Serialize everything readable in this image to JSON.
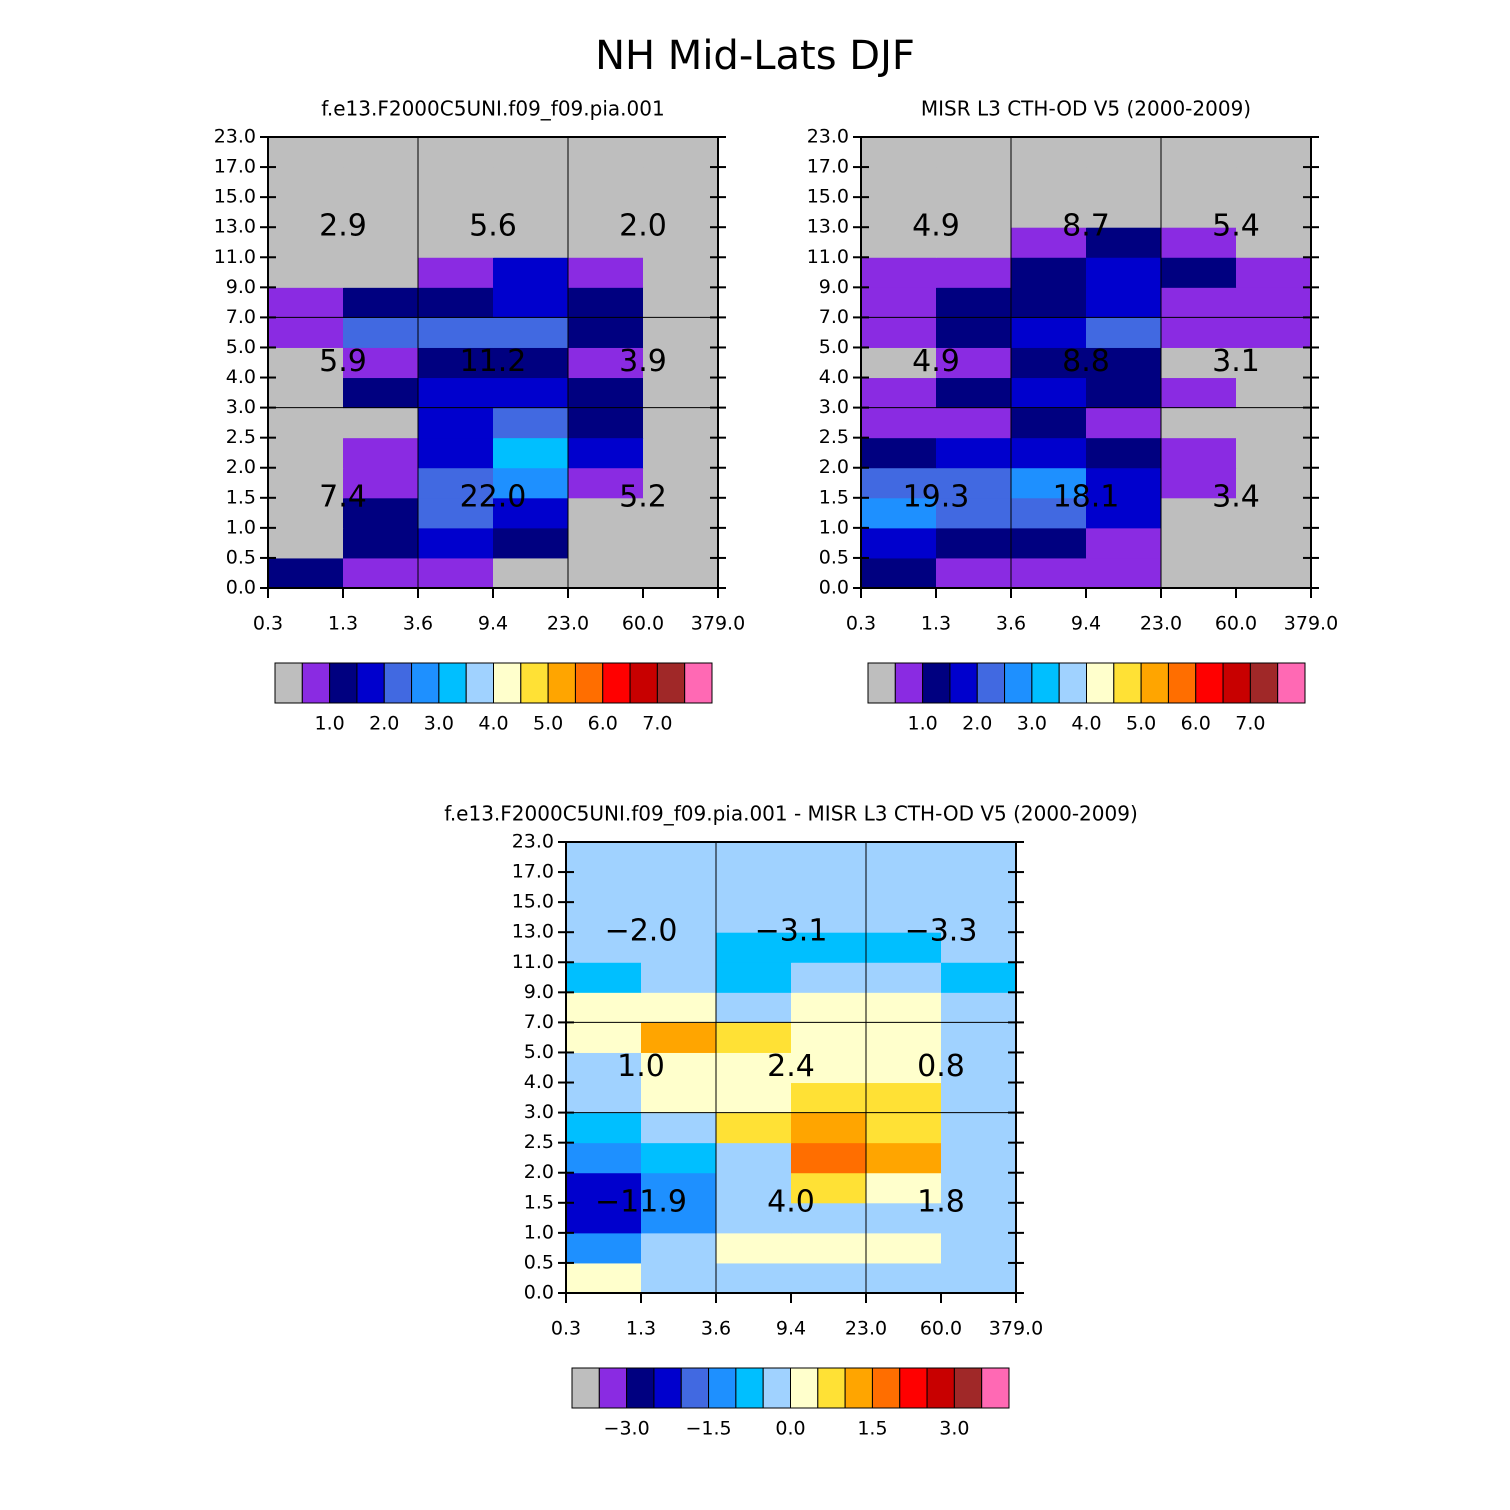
{
  "title": "NH Mid-Lats DJF",
  "chart_data": [
    {
      "type": "heatmap",
      "title": "f.e13.F2000C5UNI.f09_f09.pia.001",
      "x_edges": [
        "0.3",
        "1.3",
        "3.6",
        "9.4",
        "23.0",
        "60.0",
        "379.0"
      ],
      "y_edges": [
        "0.0",
        "0.5",
        "1.0",
        "1.5",
        "2.0",
        "2.5",
        "3.0",
        "4.0",
        "5.0",
        "7.0",
        "9.0",
        "11.0",
        "13.0",
        "15.0",
        "17.0",
        "23.0"
      ],
      "values": [
        [
          1.2,
          0.8,
          0.8,
          0.2,
          0.2,
          0.2
        ],
        [
          0.2,
          1.2,
          1.8,
          1.2,
          0.2,
          0.2
        ],
        [
          0.2,
          1.2,
          2.2,
          1.8,
          0.2,
          0.2
        ],
        [
          0.2,
          0.8,
          2.2,
          2.8,
          0.8,
          0.2
        ],
        [
          0.2,
          0.8,
          1.8,
          3.2,
          1.8,
          0.2
        ],
        [
          0.2,
          0.2,
          1.8,
          2.2,
          1.2,
          0.2
        ],
        [
          0.2,
          1.2,
          1.8,
          1.8,
          1.2,
          0.2
        ],
        [
          0.2,
          0.8,
          1.2,
          1.2,
          0.8,
          0.2
        ],
        [
          0.8,
          2.2,
          2.2,
          2.2,
          1.2,
          0.2
        ],
        [
          0.8,
          1.2,
          1.2,
          1.8,
          1.2,
          0.2
        ],
        [
          0.2,
          0.2,
          0.8,
          1.8,
          0.8,
          0.2
        ],
        [
          0.2,
          0.2,
          0.2,
          0.2,
          0.2,
          0.2
        ],
        [
          0.2,
          0.2,
          0.2,
          0.2,
          0.2,
          0.2
        ],
        [
          0.2,
          0.2,
          0.2,
          0.2,
          0.2,
          0.2
        ],
        [
          0.2,
          0.2,
          0.2,
          0.2,
          0.2,
          0.2
        ]
      ],
      "annotations": [
        [
          "7.4",
          "22.0",
          "5.2"
        ],
        [
          "5.9",
          "11.2",
          "3.9"
        ],
        [
          "2.9",
          "5.6",
          "2.0"
        ]
      ],
      "levels": [
        0.5,
        1.0,
        1.5,
        2.0,
        2.5,
        3.0,
        3.5,
        4.0,
        4.5,
        5.0,
        5.5,
        6.0,
        6.5,
        7.0,
        7.5
      ],
      "colors": [
        "#bebebe",
        "#8a2be2",
        "#000080",
        "#0000cd",
        "#4169e1",
        "#1e90ff",
        "#00bfff",
        "#a0d2ff",
        "#ffffcc",
        "#ffe135",
        "#ffa500",
        "#ff6e00",
        "#ff0000",
        "#c80000",
        "#a02828",
        "#ff69b4"
      ],
      "colorbar_ticks": [
        {
          "value": 1,
          "label": "1.0"
        },
        {
          "value": 2,
          "label": "2.0"
        },
        {
          "value": 3,
          "label": "3.0"
        },
        {
          "value": 4,
          "label": "4.0"
        },
        {
          "value": 5,
          "label": "5.0"
        },
        {
          "value": 6,
          "label": "6.0"
        },
        {
          "value": 7,
          "label": "7.0"
        }
      ]
    },
    {
      "type": "heatmap",
      "title": "MISR L3 CTH-OD V5 (2000-2009)",
      "x_edges": [
        "0.3",
        "1.3",
        "3.6",
        "9.4",
        "23.0",
        "60.0",
        "379.0"
      ],
      "y_edges": [
        "0.0",
        "0.5",
        "1.0",
        "1.5",
        "2.0",
        "2.5",
        "3.0",
        "4.0",
        "5.0",
        "7.0",
        "9.0",
        "11.0",
        "13.0",
        "15.0",
        "17.0",
        "23.0"
      ],
      "values": [
        [
          1.2,
          0.8,
          0.8,
          0.8,
          0.2,
          0.2
        ],
        [
          1.8,
          1.2,
          1.2,
          0.8,
          0.2,
          0.2
        ],
        [
          2.8,
          2.2,
          2.2,
          1.8,
          0.2,
          0.2
        ],
        [
          2.2,
          2.2,
          2.8,
          1.8,
          0.8,
          0.2
        ],
        [
          1.2,
          1.8,
          1.8,
          1.2,
          0.8,
          0.2
        ],
        [
          0.8,
          0.8,
          1.2,
          0.8,
          0.2,
          0.2
        ],
        [
          0.8,
          1.2,
          1.8,
          1.2,
          0.8,
          0.2
        ],
        [
          0.2,
          0.8,
          1.2,
          1.2,
          0.2,
          0.2
        ],
        [
          0.8,
          1.2,
          1.8,
          2.2,
          0.8,
          0.8
        ],
        [
          0.8,
          1.2,
          1.2,
          1.8,
          0.8,
          0.8
        ],
        [
          0.8,
          0.8,
          1.2,
          1.8,
          1.2,
          0.8
        ],
        [
          0.2,
          0.2,
          0.8,
          1.2,
          0.8,
          0.2
        ],
        [
          0.2,
          0.2,
          0.2,
          0.2,
          0.2,
          0.2
        ],
        [
          0.2,
          0.2,
          0.2,
          0.2,
          0.2,
          0.2
        ],
        [
          0.2,
          0.2,
          0.2,
          0.2,
          0.2,
          0.2
        ]
      ],
      "annotations": [
        [
          "19.3",
          "18.1",
          "3.4"
        ],
        [
          "4.9",
          "8.8",
          "3.1"
        ],
        [
          "4.9",
          "8.7",
          "5.4"
        ]
      ],
      "levels": [
        0.5,
        1.0,
        1.5,
        2.0,
        2.5,
        3.0,
        3.5,
        4.0,
        4.5,
        5.0,
        5.5,
        6.0,
        6.5,
        7.0,
        7.5
      ],
      "colors": [
        "#bebebe",
        "#8a2be2",
        "#000080",
        "#0000cd",
        "#4169e1",
        "#1e90ff",
        "#00bfff",
        "#a0d2ff",
        "#ffffcc",
        "#ffe135",
        "#ffa500",
        "#ff6e00",
        "#ff0000",
        "#c80000",
        "#a02828",
        "#ff69b4"
      ],
      "colorbar_ticks": [
        {
          "value": 1,
          "label": "1.0"
        },
        {
          "value": 2,
          "label": "2.0"
        },
        {
          "value": 3,
          "label": "3.0"
        },
        {
          "value": 4,
          "label": "4.0"
        },
        {
          "value": 5,
          "label": "5.0"
        },
        {
          "value": 6,
          "label": "6.0"
        },
        {
          "value": 7,
          "label": "7.0"
        }
      ]
    },
    {
      "type": "heatmap",
      "title": "f.e13.F2000C5UNI.f09_f09.pia.001 - MISR L3 CTH-OD V5 (2000-2009)",
      "x_edges": [
        "0.3",
        "1.3",
        "3.6",
        "9.4",
        "23.0",
        "60.0",
        "379.0"
      ],
      "y_edges": [
        "0.0",
        "0.5",
        "1.0",
        "1.5",
        "2.0",
        "2.5",
        "3.0",
        "4.0",
        "5.0",
        "7.0",
        "9.0",
        "11.0",
        "13.0",
        "15.0",
        "17.0",
        "23.0"
      ],
      "values": [
        [
          0.2,
          -0.2,
          -0.2,
          -0.2,
          -0.2,
          -0.2
        ],
        [
          -1.2,
          -0.2,
          0.2,
          0.2,
          0.2,
          -0.2
        ],
        [
          -2.2,
          -1.2,
          -0.2,
          -0.2,
          -0.2,
          -0.2
        ],
        [
          -2.2,
          -1.2,
          -0.2,
          0.8,
          0.2,
          -0.2
        ],
        [
          -1.2,
          -0.8,
          -0.2,
          1.8,
          1.2,
          -0.2
        ],
        [
          -0.8,
          -0.2,
          0.8,
          1.2,
          0.8,
          -0.2
        ],
        [
          -0.2,
          0.2,
          0.2,
          0.8,
          0.8,
          -0.2
        ],
        [
          -0.2,
          0.2,
          0.2,
          0.2,
          0.2,
          -0.2
        ],
        [
          0.2,
          1.2,
          0.8,
          0.2,
          0.2,
          -0.2
        ],
        [
          0.2,
          0.2,
          -0.2,
          0.2,
          0.2,
          -0.2
        ],
        [
          -0.8,
          -0.2,
          -0.8,
          -0.2,
          -0.2,
          -0.8
        ],
        [
          -0.2,
          -0.2,
          -0.8,
          -0.8,
          -0.8,
          -0.2
        ],
        [
          -0.2,
          -0.2,
          -0.2,
          -0.2,
          -0.2,
          -0.2
        ],
        [
          -0.2,
          -0.2,
          -0.2,
          -0.2,
          -0.2,
          -0.2
        ],
        [
          -0.2,
          -0.2,
          -0.2,
          -0.2,
          -0.2,
          -0.2
        ]
      ],
      "annotations": [
        [
          "−11.9",
          "4.0",
          "1.8"
        ],
        [
          "1.0",
          "2.4",
          "0.8"
        ],
        [
          "−2.0",
          "−3.1",
          "−3.3"
        ]
      ],
      "levels": [
        -3.5,
        -3.0,
        -2.5,
        -2.0,
        -1.5,
        -1.0,
        -0.5,
        0.0,
        0.5,
        1.0,
        1.5,
        2.0,
        2.5,
        3.0,
        3.5
      ],
      "colors": [
        "#bebebe",
        "#8a2be2",
        "#000080",
        "#0000cd",
        "#4169e1",
        "#1e90ff",
        "#00bfff",
        "#a0d2ff",
        "#ffffcc",
        "#ffe135",
        "#ffa500",
        "#ff6e00",
        "#ff0000",
        "#c80000",
        "#a02828",
        "#ff69b4"
      ],
      "colorbar_ticks": [
        {
          "value": -3,
          "label": "−3.0"
        },
        {
          "value": -1.5,
          "label": "−1.5"
        },
        {
          "value": 0,
          "label": "0.0"
        },
        {
          "value": 1.5,
          "label": "1.5"
        },
        {
          "value": 3,
          "label": "3.0"
        }
      ]
    }
  ]
}
